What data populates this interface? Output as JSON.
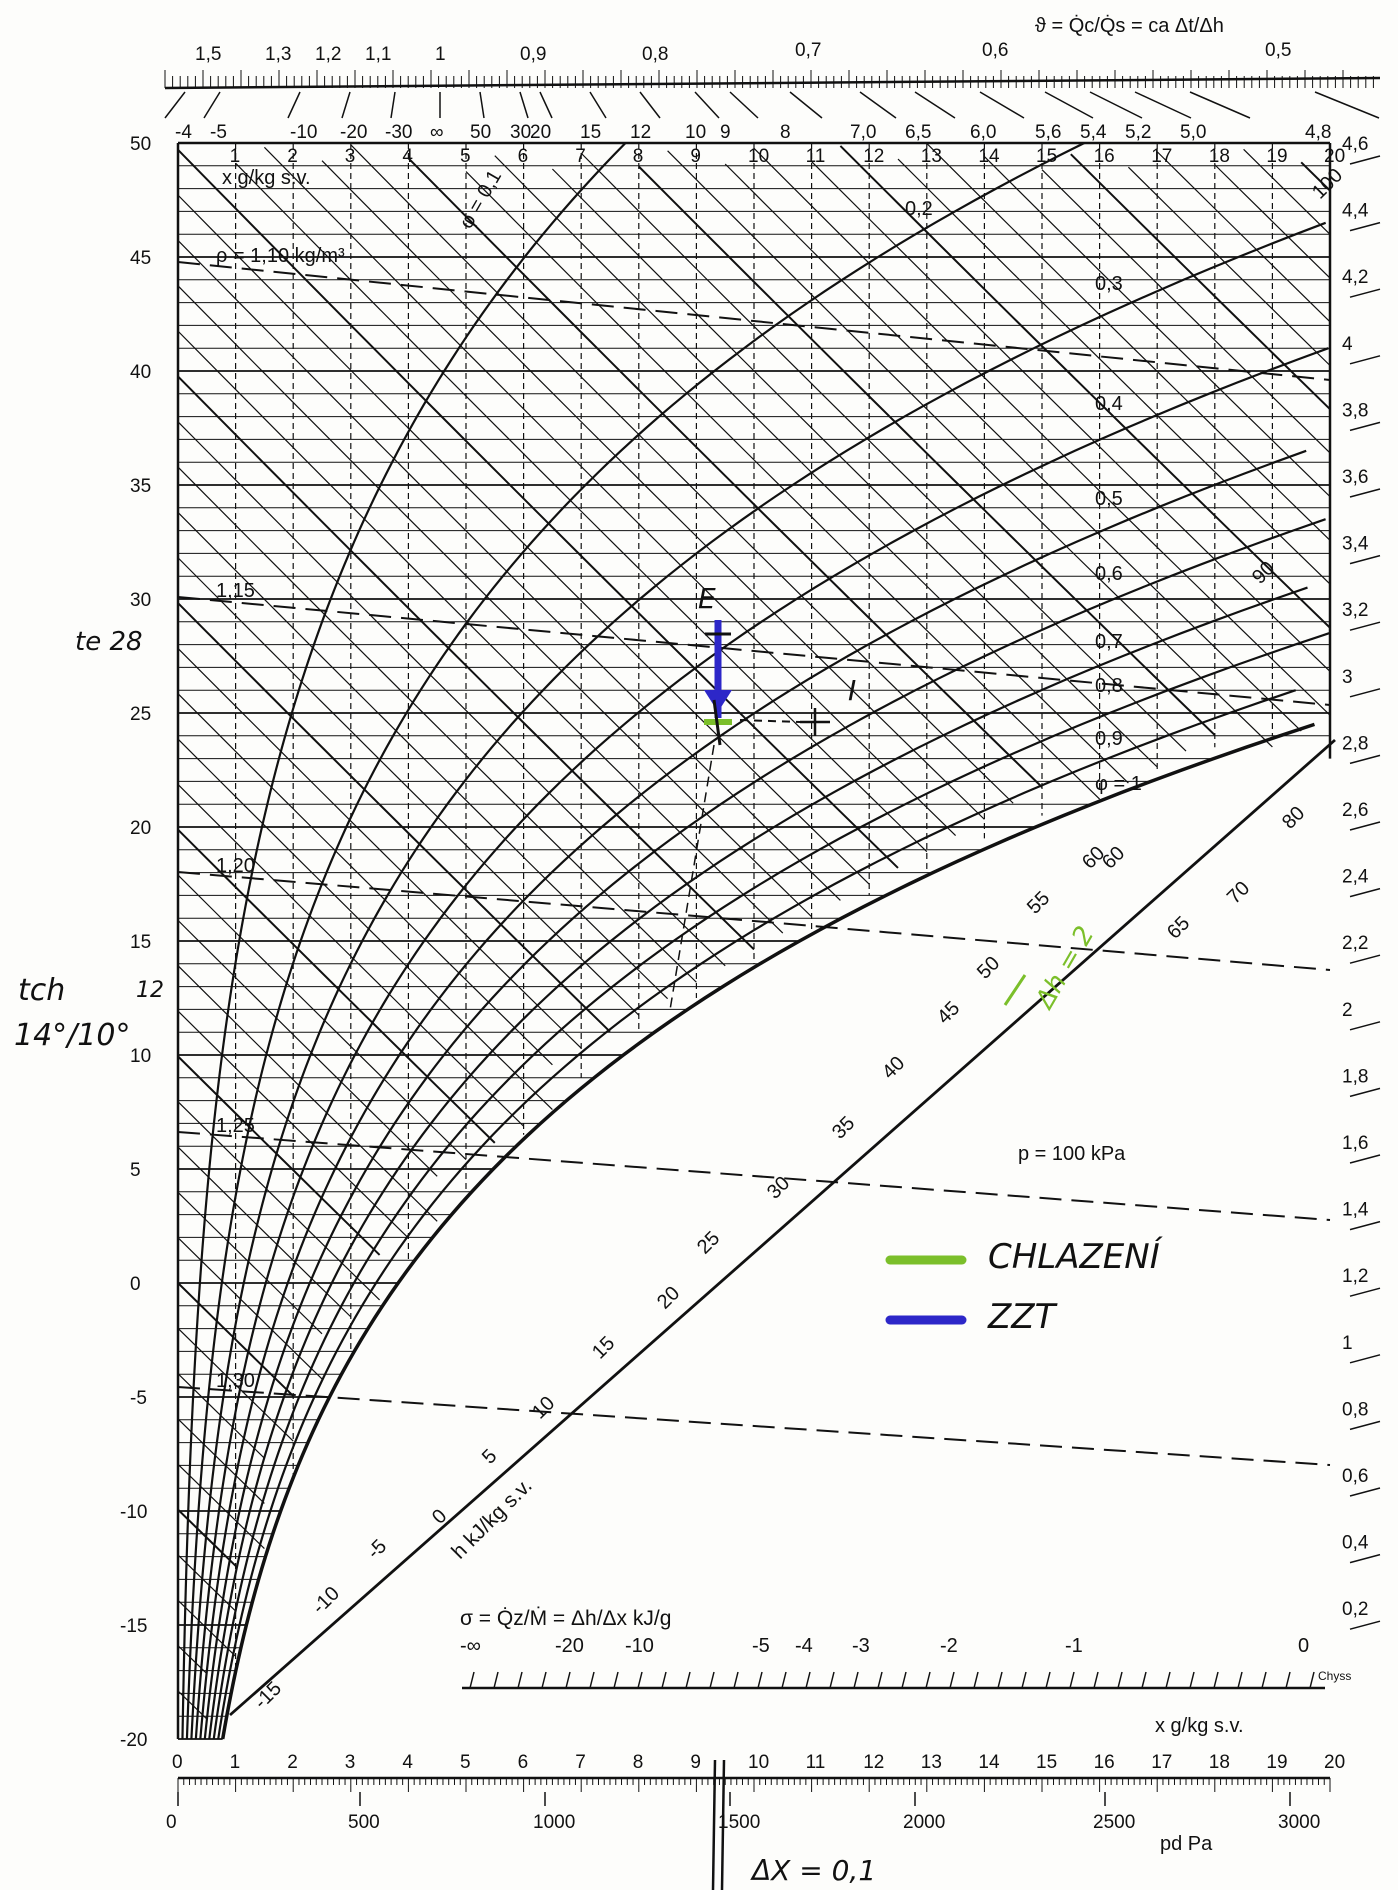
{
  "top_scale": {
    "formula": "ϑ = Q̇c/Q̇s = ca Δt/Δh",
    "labels": [
      "1,5",
      "1,3",
      "1,2",
      "1,1",
      "1",
      "0,9",
      "0,8",
      "0,7",
      "0,6",
      "0,5"
    ],
    "inner_labels": [
      "-4",
      "-5",
      "-10",
      "-20",
      "-30",
      "∞",
      "50",
      "30",
      "20",
      "15",
      "12",
      "10",
      "9",
      "8",
      "7,0",
      "6,5",
      "6,0",
      "5,6",
      "5,4",
      "5,2",
      "5,0",
      "4,8"
    ]
  },
  "x_axis_top": {
    "title": "x g/kg s.v.",
    "ticks": [
      "1",
      "2",
      "3",
      "4",
      "5",
      "6",
      "7",
      "8",
      "9",
      "10",
      "11",
      "12",
      "13",
      "14",
      "15",
      "16",
      "17",
      "18",
      "19",
      "20"
    ]
  },
  "x_axis_bottom": {
    "title": "x g/kg s.v.",
    "ticks": [
      "0",
      "1",
      "2",
      "3",
      "4",
      "5",
      "6",
      "7",
      "8",
      "9",
      "10",
      "11",
      "12",
      "13",
      "14",
      "15",
      "16",
      "17",
      "18",
      "19",
      "20"
    ]
  },
  "pd_axis": {
    "title": "pd  Pa",
    "ticks": [
      "0",
      "500",
      "1000",
      "1500",
      "2000",
      "2500",
      "3000"
    ]
  },
  "t_axis": {
    "ticks": [
      "50",
      "45",
      "40",
      "35",
      "30",
      "25",
      "20",
      "15",
      "10",
      "5",
      "0",
      "-5",
      "-10",
      "-15",
      "-20"
    ]
  },
  "right_scale": {
    "ticks": [
      "4,6",
      "4,4",
      "4,2",
      "4",
      "3,8",
      "3,6",
      "3,4",
      "3,2",
      "3",
      "2,8",
      "2,6",
      "2,4",
      "2,2",
      "2",
      "1,8",
      "1,6",
      "1,4",
      "1,2",
      "1",
      "0,8",
      "0,6",
      "0,4",
      "0,2"
    ]
  },
  "rh_labels": [
    "φ = 0,1",
    "0,2",
    "0,3",
    "0,4",
    "0,5",
    "0,6",
    "0,7",
    "0,8",
    "0,9",
    "φ = 1"
  ],
  "density_labels": [
    "ρ = 1,10 kg/m³",
    "1,15",
    "1,20",
    "1,25",
    "1,30"
  ],
  "enthalpy": {
    "title": "h kJ/kg s.v.",
    "labels": [
      "-15",
      "-10",
      "-5",
      "0",
      "5",
      "10",
      "15",
      "20",
      "25",
      "30",
      "35",
      "40",
      "45",
      "50",
      "55",
      "60"
    ],
    "outer_labels": [
      "60",
      "65",
      "70",
      "80",
      "90",
      "100"
    ]
  },
  "sigma_scale": {
    "formula": "σ = Q̇z/Ṁ = Δh/Δx  kJ/g",
    "labels": [
      "-∞",
      "-20",
      "-10",
      "-5",
      "-4",
      "-3",
      "-2",
      "-1",
      "0"
    ],
    "corner": "Chyss"
  },
  "pressure_note": "p = 100  kPa",
  "annotations": {
    "te": "te 28",
    "tch": "tch",
    "twelve": "12",
    "tch_values": "14°/10°",
    "point_e": "E",
    "point_i": "I",
    "dh": "Δh = 2",
    "dx": "ΔX = 0,1"
  },
  "legend": [
    {
      "label": "CHLAZENÍ",
      "color": "#7bbf2a"
    },
    {
      "label": "ZZT",
      "color": "#2d27c8"
    }
  ],
  "colors": {
    "ink": "#111111",
    "paper": "#fdfdfb",
    "green": "#7bbf2a",
    "blue": "#2d27c8"
  }
}
